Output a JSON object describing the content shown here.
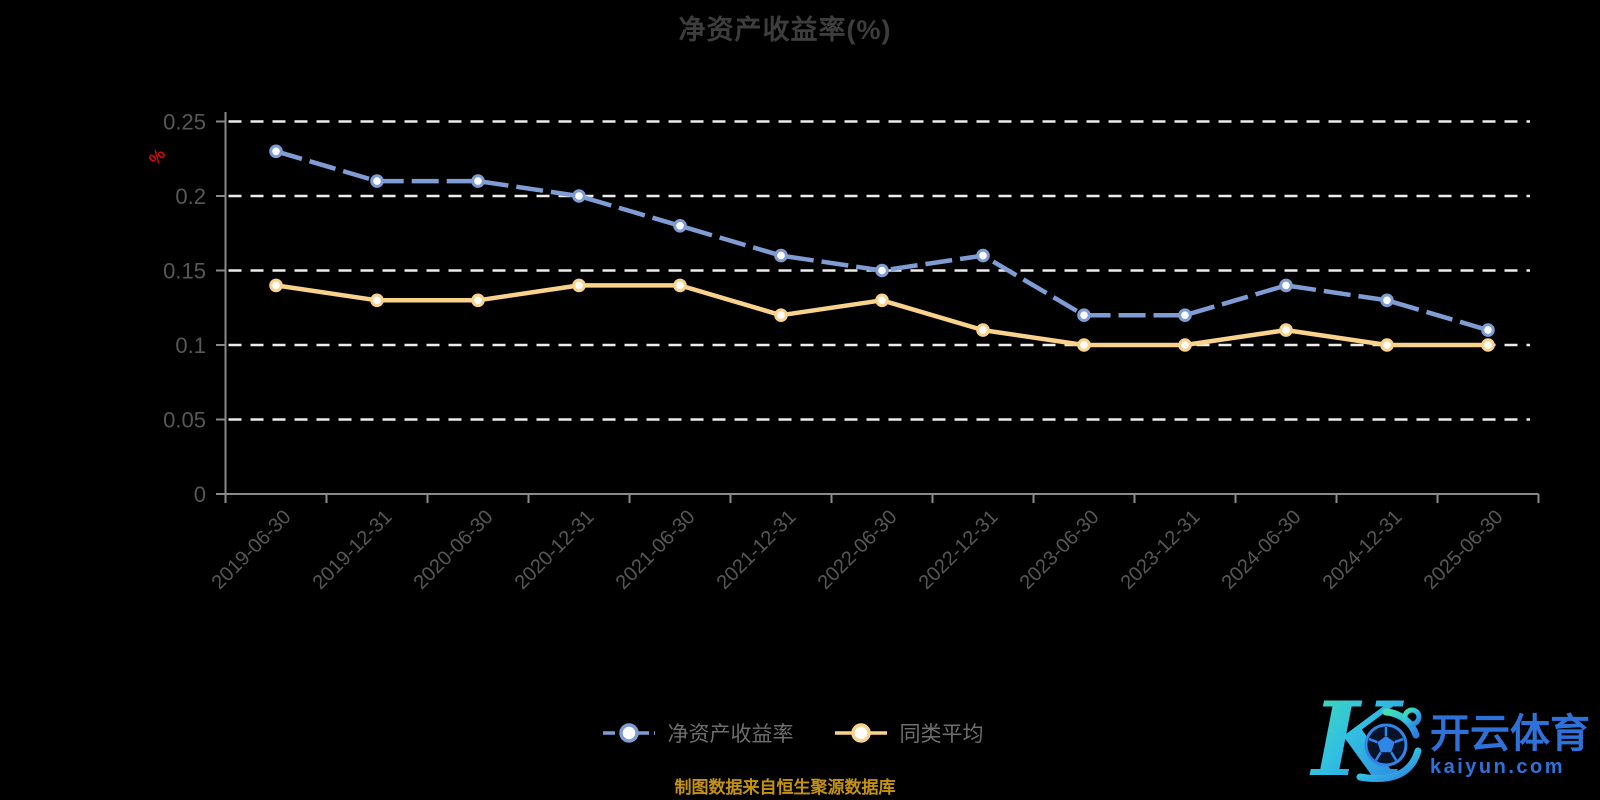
{
  "title": "净资产收益率(%)",
  "y_axis_unit_label": "%",
  "footer_note": "制图数据来自恒生聚源数据库",
  "watermark": {
    "brand_cn": "开云体育",
    "brand_domain": "kaiyun.com"
  },
  "colors": {
    "background": "#000000",
    "title": "#3d3d3d",
    "axis": "#8a8a8a",
    "gridline": "#ececec",
    "tick_label": "#57575a",
    "legend_text": "#6e6e6e",
    "unit_label_red": "#d40b0b",
    "footer": "#c3920f",
    "series_roe": "#7f9dd4",
    "series_avg": "#f9d28b",
    "marker_fill": "#ffffff",
    "watermark_blue": "#2e72d9"
  },
  "chart_data": {
    "type": "line",
    "title": "净资产收益率(%)",
    "categories": [
      "2019-06-30",
      "2019-12-31",
      "2020-06-30",
      "2020-12-31",
      "2021-06-30",
      "2021-12-31",
      "2022-06-30",
      "2022-12-31",
      "2023-06-30",
      "2023-12-31",
      "2024-06-30",
      "2024-12-31",
      "2025-06-30"
    ],
    "series": [
      {
        "name": "净资产收益率",
        "color": "#7f9dd4",
        "line_style": "dashed",
        "marker": "circle-white-fill",
        "values": [
          0.23,
          0.21,
          0.21,
          0.2,
          0.18,
          0.16,
          0.15,
          0.16,
          0.12,
          0.12,
          0.14,
          0.13,
          0.11
        ]
      },
      {
        "name": "同类平均",
        "color": "#f9d28b",
        "line_style": "solid",
        "marker": "circle-white-fill",
        "values": [
          0.14,
          0.13,
          0.13,
          0.14,
          0.14,
          0.12,
          0.13,
          0.11,
          0.1,
          0.1,
          0.11,
          0.1,
          0.1
        ]
      }
    ],
    "xlabel": "",
    "ylabel": "%",
    "ylim": [
      0,
      0.25
    ],
    "yticks": [
      "0",
      "0.05",
      "0.1",
      "0.15",
      "0.2",
      "0.25"
    ],
    "x_label_rotation_deg": 45,
    "grid": "horizontal dashed white lines",
    "legend_position": "bottom-center",
    "background": "#000000"
  }
}
